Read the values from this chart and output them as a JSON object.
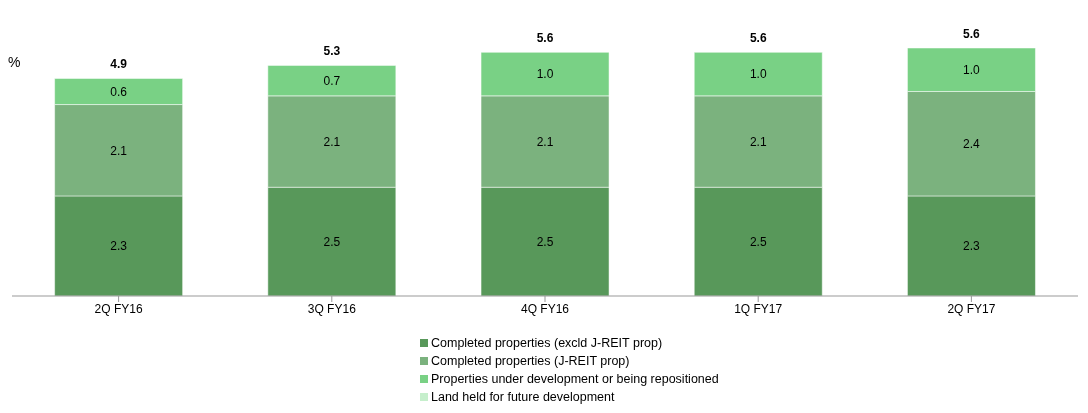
{
  "chart_data": {
    "type": "bar",
    "stacked": true,
    "ylabel": "%",
    "categories": [
      "2Q FY16",
      "3Q FY16",
      "4Q FY16",
      "1Q FY17",
      "2Q FY17"
    ],
    "series": [
      {
        "name": "Completed properties (excld J-REIT prop)",
        "color": "#58985a",
        "values": [
          2.3,
          2.5,
          2.5,
          2.5,
          2.3
        ],
        "value_labels": [
          "2.3",
          "2.5",
          "2.5",
          "2.5",
          "2.3"
        ]
      },
      {
        "name": "Completed properties (J-REIT prop)",
        "color": "#7bb27e",
        "values": [
          2.1,
          2.1,
          2.1,
          2.1,
          2.4
        ],
        "value_labels": [
          "2.1",
          "2.1",
          "2.1",
          "2.1",
          "2.4"
        ]
      },
      {
        "name": "Properties under development or being repositioned",
        "color": "#79d185",
        "values": [
          0.6,
          0.7,
          1.0,
          1.0,
          1.0
        ],
        "value_labels": [
          "0.6",
          "0.7",
          "1.0",
          "1.0",
          "1.0"
        ]
      },
      {
        "name": "Land held for future development",
        "color": "#c6efcc",
        "values": [
          null,
          null,
          null,
          null,
          null
        ]
      }
    ],
    "totals": [
      "4.9",
      "5.3",
      "5.6",
      "5.6",
      "5.6"
    ],
    "legend": "bottom"
  }
}
